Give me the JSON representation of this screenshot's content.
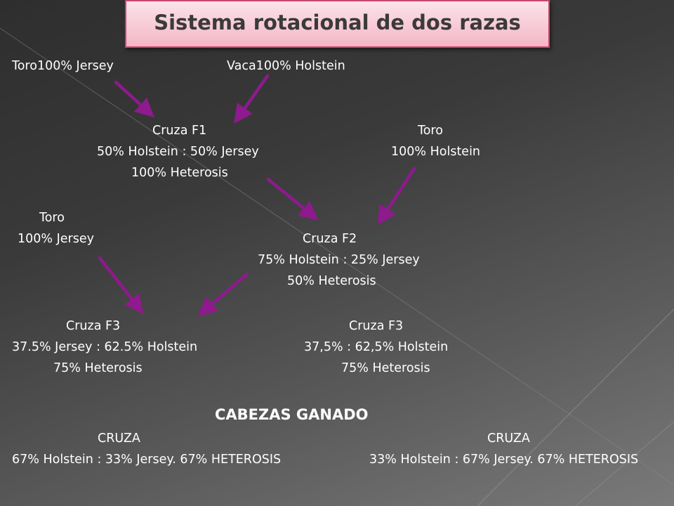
{
  "title": "Sistema rotacional de dos razas",
  "diagram": {
    "bull_jersey": "Toro100% Jersey",
    "cow_holstein": "Vaca100% Holstein",
    "f1_label": "Cruza F1",
    "f1_percent": "50% Holstein : 50% Jersey",
    "f1_heterosis": "100% Heterosis",
    "bull2_label": "Toro",
    "bull2_percent": "100% Holstein",
    "bull3_label": "Toro",
    "bull3_percent": "100% Jersey",
    "f2_label": "Cruza F2",
    "f2_percent": "75% Holstein : 25% Jersey",
    "f2_heterosis": "50%  Heterosis",
    "f3a_label": "Cruza F3",
    "f3a_percent": "37.5% Jersey : 62.5% Holstein",
    "f3a_heterosis": "75% Heterosis",
    "f3b_label": "Cruza F3",
    "f3b_percent": "37,5% : 62,5% Holstein",
    "f3b_heterosis": "75% Heterosis"
  },
  "summary": {
    "heading": "CABEZAS GANADO",
    "left_label": "CRUZA",
    "left_text": "67% Holstein : 33% Jersey. 67% HETEROSIS",
    "right_label": "CRUZA",
    "right_text": "33% Holstein : 67% Jersey. 67% HETEROSIS"
  },
  "colors": {
    "arrow": "#8e1a8e",
    "title_border": "#c7486c",
    "title_fill": "#f4b6c6"
  }
}
